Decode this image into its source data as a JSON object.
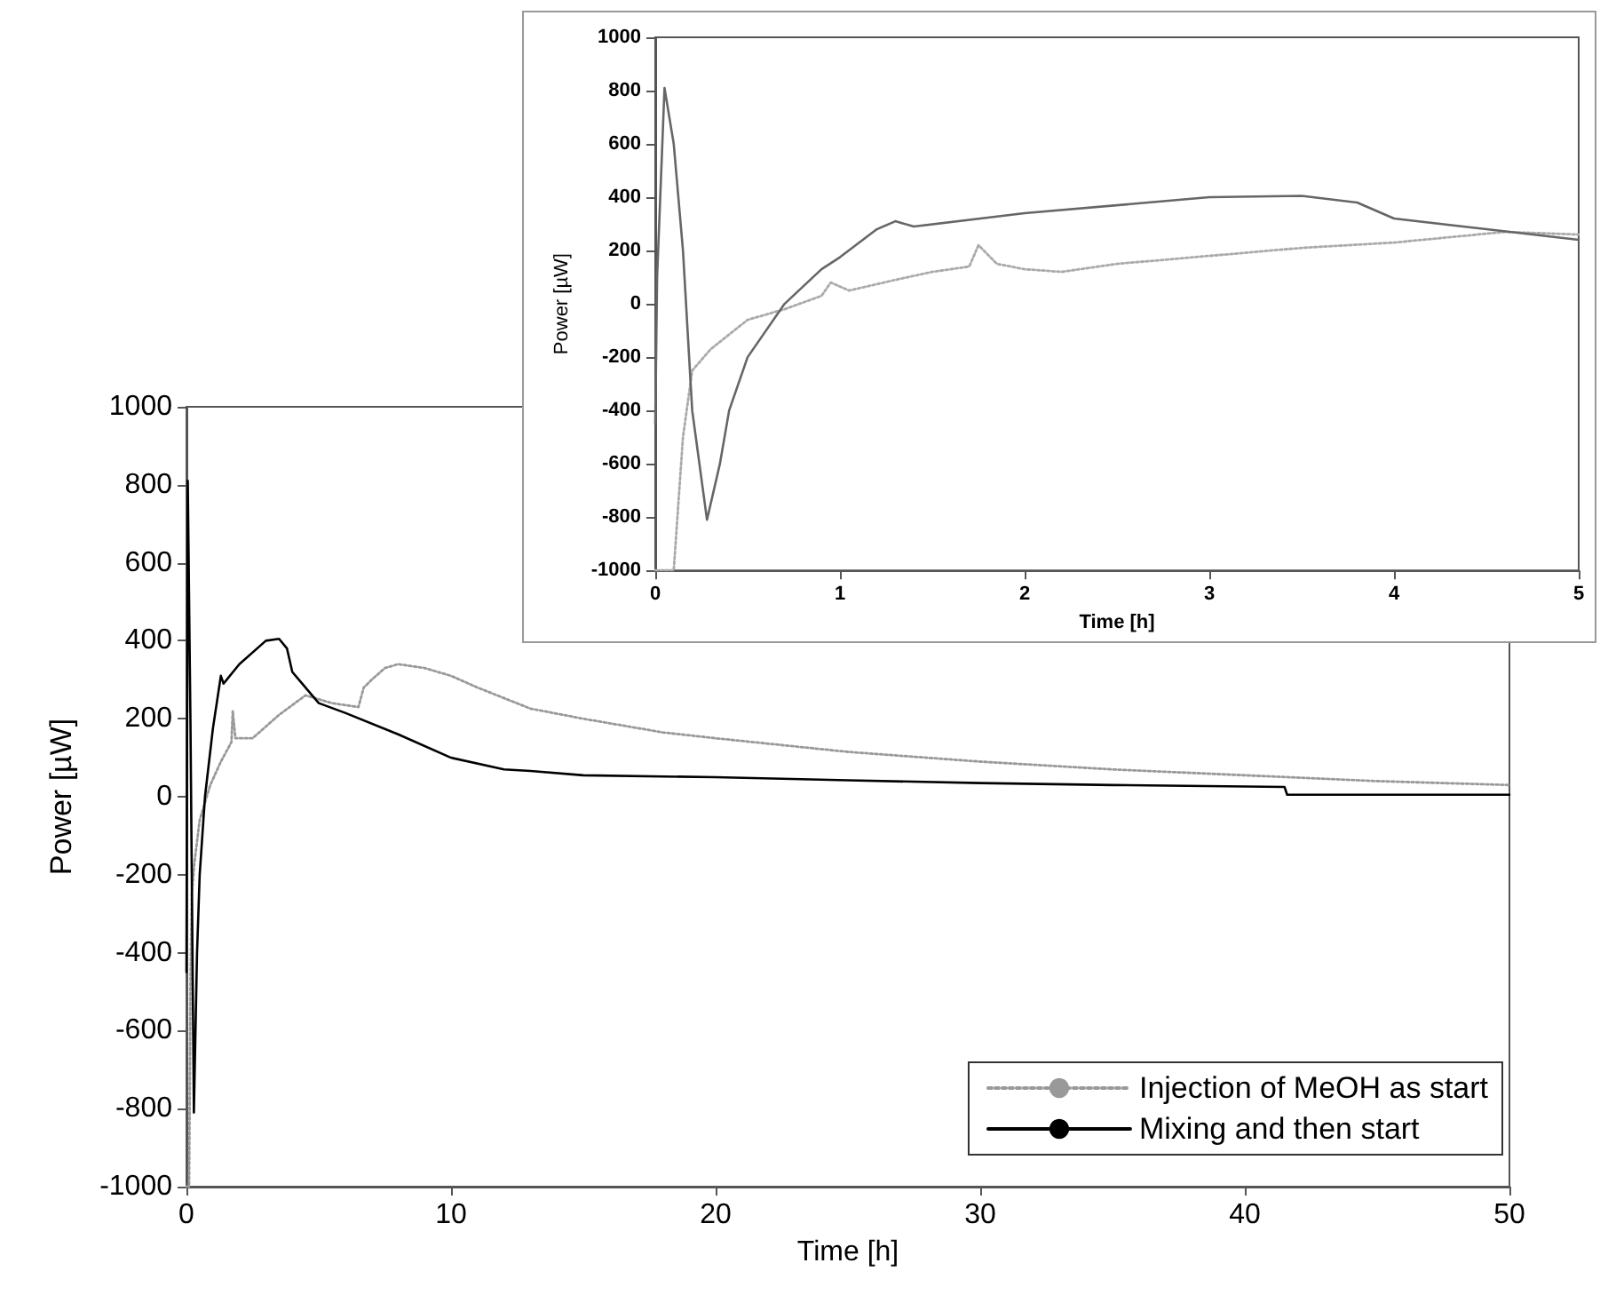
{
  "chart_data": [
    {
      "type": "line",
      "xlabel": "Time [h]",
      "ylabel": "Power [µW]",
      "xlim": [
        0,
        50
      ],
      "xticks": [
        0,
        10,
        20,
        30,
        40,
        50
      ],
      "ylim": [
        -1000,
        1000
      ],
      "yticks": [
        -1000,
        -800,
        -600,
        -400,
        -200,
        0,
        200,
        400,
        600,
        800,
        1000
      ],
      "grid": false,
      "legend": "bottom right",
      "marker": "none",
      "series": [
        {
          "name": "Injection of MeOH as start",
          "color": "#999999",
          "line_style": "dotted",
          "x": [
            0,
            0.1,
            0.15,
            0.2,
            0.3,
            0.5,
            0.9,
            1.3,
            1.7,
            1.75,
            1.85,
            2.5,
            3.5,
            4.5,
            5.5,
            6.5,
            6.7,
            7,
            7.5,
            8,
            9,
            10,
            11,
            13,
            15,
            18,
            20,
            25,
            30,
            35,
            40,
            45,
            50
          ],
          "values": [
            -1000,
            -1000,
            -500,
            -250,
            -170,
            -60,
            30,
            90,
            140,
            220,
            150,
            150,
            210,
            260,
            240,
            230,
            280,
            300,
            330,
            340,
            330,
            310,
            280,
            226,
            200,
            165,
            150,
            115,
            90,
            70,
            55,
            40,
            30
          ]
        },
        {
          "name": "Mixing and then start",
          "color": "#000000",
          "line_style": "solid",
          "x": [
            0,
            0.05,
            0.15,
            0.28,
            0.4,
            0.5,
            0.7,
            1,
            1.3,
            1.4,
            2,
            3,
            3.5,
            3.8,
            4,
            4.5,
            5,
            6,
            8,
            10,
            12,
            13,
            15,
            20,
            25,
            30,
            35,
            41.5,
            41.6,
            50
          ],
          "values": [
            -450,
            810,
            200,
            -810,
            -400,
            -200,
            0,
            175,
            310,
            290,
            340,
            400,
            405,
            380,
            320,
            280,
            240,
            215,
            160,
            100,
            70,
            66,
            55,
            50,
            42,
            35,
            30,
            25,
            5,
            5
          ]
        }
      ]
    },
    {
      "type": "line",
      "xlabel": "Time [h]",
      "ylabel": "Power [µW]",
      "xlim": [
        0,
        5
      ],
      "xticks": [
        0,
        1,
        2,
        3,
        4,
        5
      ],
      "ylim": [
        -1000,
        1000
      ],
      "yticks": [
        -1000,
        -800,
        -600,
        -400,
        -200,
        0,
        200,
        400,
        600,
        800,
        1000
      ],
      "grid": false,
      "marker": "none",
      "series": [
        {
          "color": "#aaaaaa",
          "line_style": "dotted",
          "x": [
            0,
            0.1,
            0.15,
            0.2,
            0.3,
            0.5,
            0.7,
            0.9,
            0.95,
            1.05,
            1.3,
            1.5,
            1.7,
            1.75,
            1.85,
            2,
            2.2,
            2.5,
            3,
            3.5,
            4,
            4.3,
            4.6,
            5
          ],
          "values": [
            -1000,
            -1000,
            -500,
            -250,
            -170,
            -60,
            -20,
            30,
            80,
            50,
            90,
            120,
            140,
            220,
            150,
            130,
            120,
            150,
            180,
            210,
            230,
            250,
            270,
            260
          ]
        },
        {
          "color": "#666666",
          "line_style": "solid",
          "x": [
            0,
            0.01,
            0.05,
            0.1,
            0.15,
            0.2,
            0.28,
            0.35,
            0.4,
            0.5,
            0.7,
            0.9,
            1,
            1.2,
            1.3,
            1.4,
            2,
            3,
            3.5,
            3.8,
            4,
            4.5,
            5
          ],
          "values": [
            -450,
            100,
            810,
            600,
            200,
            -400,
            -810,
            -600,
            -400,
            -200,
            0,
            130,
            175,
            280,
            310,
            290,
            340,
            400,
            405,
            380,
            320,
            280,
            240
          ]
        }
      ]
    }
  ]
}
